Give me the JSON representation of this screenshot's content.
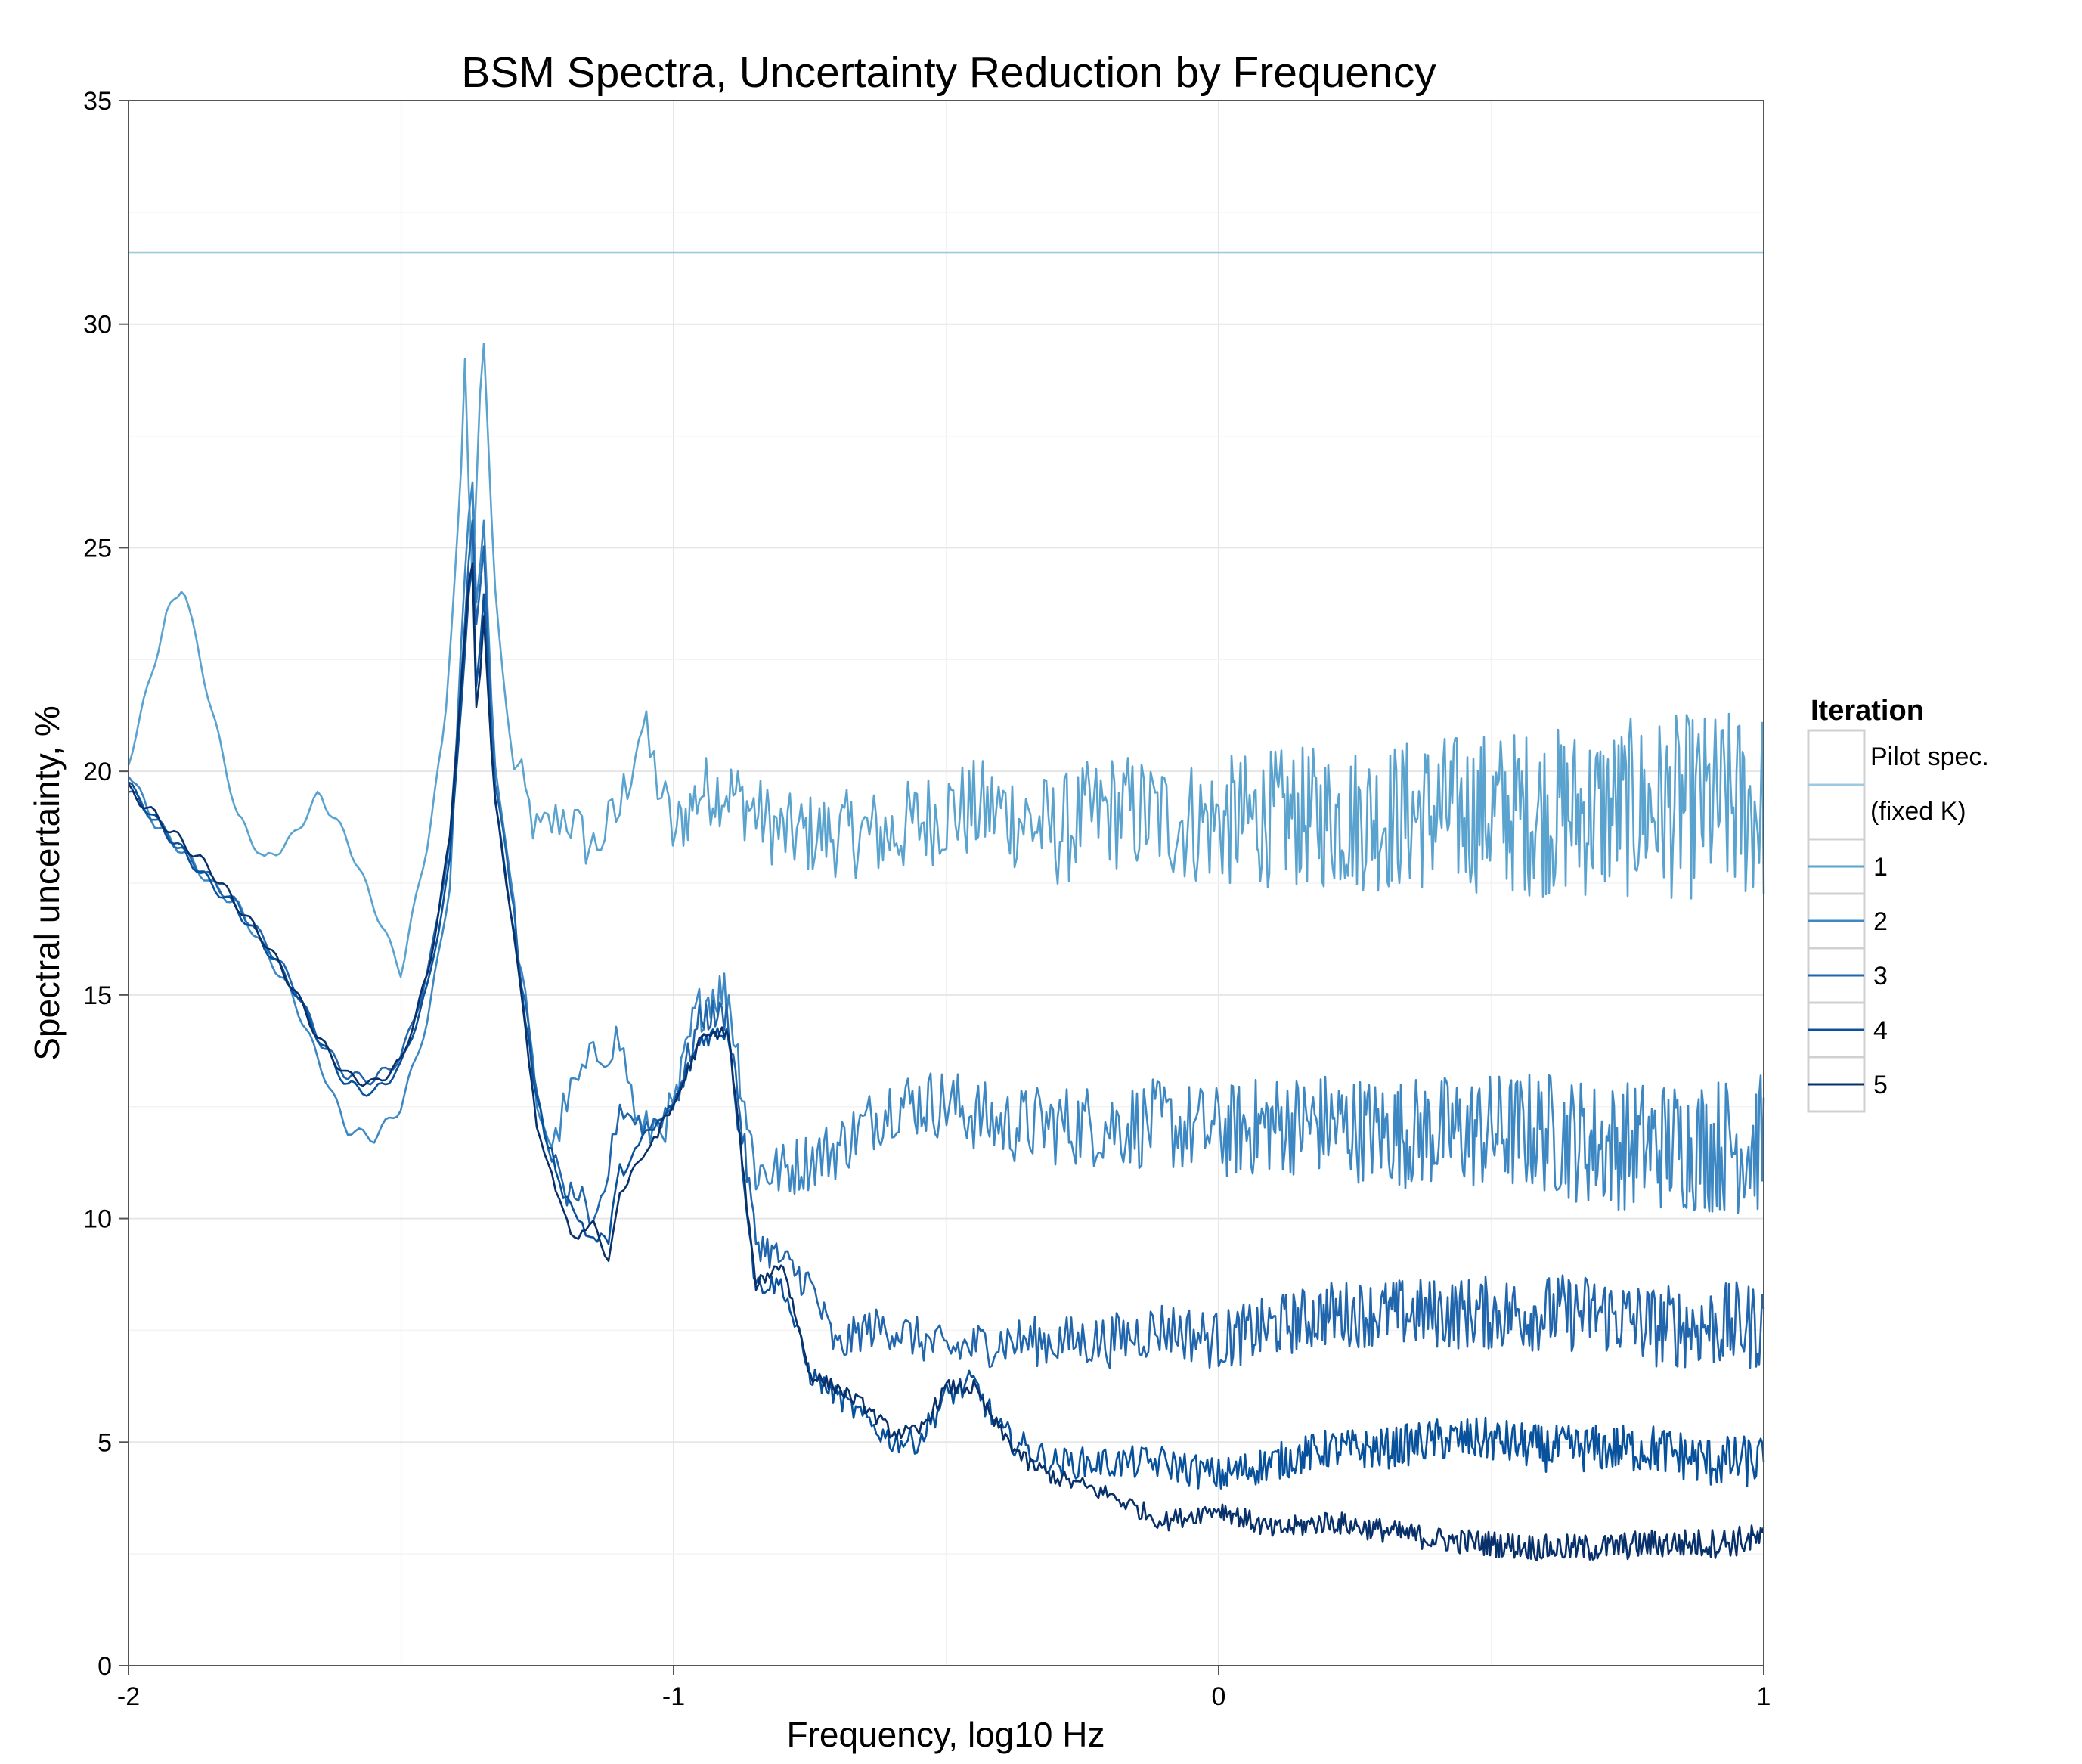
{
  "chart_data": {
    "type": "line",
    "title": "BSM Spectra, Uncertainty Reduction by Frequency",
    "xlabel": "Frequency, log10 Hz",
    "ylabel": "Spectral uncertainty, %",
    "xlim": [
      -2,
      1
    ],
    "ylim": [
      0,
      35
    ],
    "x_ticks": [
      -2,
      -1,
      0,
      1
    ],
    "y_ticks": [
      0,
      5,
      10,
      15,
      20,
      25,
      30,
      35
    ],
    "grid": true,
    "legend": {
      "title": "Iteration",
      "placement": "right",
      "entries": [
        "Pilot spec. (fixed K)",
        "1",
        "2",
        "3",
        "4",
        "5"
      ]
    },
    "series": [
      {
        "name": "Pilot spec. (fixed K)",
        "color": "#9ecae1",
        "noise": 0,
        "x": [
          -2,
          1
        ],
        "y": [
          31.6,
          31.6
        ]
      },
      {
        "name": "1",
        "color": "#5ba3cf",
        "noise": 2.2,
        "x": [
          -2,
          -1.93,
          -1.9,
          -1.85,
          -1.8,
          -1.75,
          -1.7,
          -1.65,
          -1.6,
          -1.55,
          -1.5,
          -1.45,
          -1.42,
          -1.39,
          -1.385,
          -1.37,
          -1.36,
          -1.35,
          -1.33,
          -1.3,
          -1.25,
          -1.2,
          -1.15,
          -1.1,
          -1.06,
          -1.0,
          -0.95,
          -0.9,
          -0.8,
          -0.7,
          -0.6,
          -0.5,
          -0.4,
          -0.3,
          -0.2,
          -0.1,
          0,
          0.1,
          0.2,
          0.3,
          0.4,
          0.5,
          0.6,
          0.7,
          0.8,
          0.9,
          1.0
        ],
        "y": [
          20.2,
          23.5,
          24.2,
          21.5,
          19.0,
          18.0,
          18.5,
          19.5,
          18.5,
          17.0,
          15.5,
          18.5,
          21.0,
          26.5,
          30.0,
          24.0,
          27.0,
          30.0,
          24.5,
          20.5,
          18.5,
          19.0,
          18.2,
          19.0,
          21.0,
          18.5,
          19.5,
          19.5,
          18.5,
          18.5,
          18.5,
          19.0,
          19.0,
          18.5,
          19.0,
          18.8,
          18.7,
          18.8,
          18.8,
          18.8,
          18.9,
          18.9,
          18.9,
          18.9,
          19.0,
          19.0,
          19.0
        ]
      },
      {
        "name": "2",
        "color": "#3d88c3",
        "noise": 1.6,
        "x": [
          -2,
          -1.95,
          -1.9,
          -1.85,
          -1.8,
          -1.75,
          -1.7,
          -1.65,
          -1.6,
          -1.55,
          -1.5,
          -1.45,
          -1.41,
          -1.385,
          -1.37,
          -1.36,
          -1.35,
          -1.33,
          -1.3,
          -1.25,
          -1.22,
          -1.2,
          -1.15,
          -1.1,
          -1.06,
          -1.0,
          -0.96,
          -0.93,
          -0.9,
          -0.85,
          -0.8,
          -0.7,
          -0.6,
          -0.5,
          -0.4,
          -0.3,
          -0.2,
          -0.1,
          0,
          0.1,
          0.2,
          0.3,
          0.4,
          0.5,
          0.6,
          0.7,
          0.8,
          0.9,
          1.0
        ],
        "y": [
          20.0,
          18.8,
          18.2,
          17.5,
          17.0,
          16.0,
          15.0,
          13.5,
          12.0,
          11.8,
          12.5,
          14.5,
          17.5,
          24.0,
          27.0,
          23.0,
          26.0,
          20.5,
          17.5,
          12.5,
          11.5,
          12.5,
          13.5,
          14.0,
          11.8,
          12.3,
          14.5,
          15.0,
          15.0,
          11.0,
          11.0,
          11.5,
          12.5,
          12.5,
          12.0,
          12.0,
          12.0,
          12.0,
          11.8,
          12.0,
          12.0,
          11.8,
          11.8,
          11.8,
          11.8,
          11.5,
          11.5,
          11.5,
          11.5
        ]
      },
      {
        "name": "3",
        "color": "#2166ac",
        "noise": 1.0,
        "x": [
          -2,
          -1.95,
          -1.9,
          -1.85,
          -1.8,
          -1.75,
          -1.7,
          -1.65,
          -1.6,
          -1.55,
          -1.5,
          -1.45,
          -1.41,
          -1.39,
          -1.37,
          -1.36,
          -1.35,
          -1.33,
          -1.3,
          -1.25,
          -1.2,
          -1.17,
          -1.15,
          -1.12,
          -1.1,
          -1.05,
          -1.0,
          -0.95,
          -0.9,
          -0.85,
          -0.8,
          -0.75,
          -0.7,
          -0.65,
          -0.6,
          -0.5,
          -0.4,
          -0.3,
          -0.2,
          -0.1,
          0,
          0.1,
          0.2,
          0.3,
          0.4,
          0.5,
          0.6,
          0.7,
          0.8,
          0.9,
          1.0
        ],
        "y": [
          19.6,
          18.9,
          18.2,
          17.6,
          17.0,
          16.2,
          15.3,
          14.0,
          13.2,
          13.1,
          13.6,
          15.5,
          18.5,
          22.0,
          26.0,
          22.5,
          25.5,
          20.0,
          17.5,
          12.5,
          10.5,
          10.5,
          9.5,
          11.0,
          12.5,
          12.0,
          12.5,
          14.5,
          14.5,
          9.5,
          9.0,
          8.5,
          7.0,
          7.5,
          7.5,
          7.0,
          7.2,
          7.2,
          7.2,
          7.5,
          7.2,
          7.5,
          7.8,
          7.8,
          7.8,
          7.8,
          7.8,
          7.8,
          7.5,
          7.5,
          7.5
        ]
      },
      {
        "name": "4",
        "color": "#08519c",
        "noise": 0.6,
        "x": [
          -2,
          -1.95,
          -1.9,
          -1.85,
          -1.8,
          -1.75,
          -1.7,
          -1.65,
          -1.6,
          -1.55,
          -1.5,
          -1.45,
          -1.41,
          -1.39,
          -1.37,
          -1.36,
          -1.35,
          -1.33,
          -1.3,
          -1.25,
          -1.2,
          -1.15,
          -1.12,
          -1.1,
          -1.05,
          -1.0,
          -0.95,
          -0.9,
          -0.85,
          -0.8,
          -0.75,
          -0.7,
          -0.65,
          -0.6,
          -0.55,
          -0.5,
          -0.45,
          -0.4,
          -0.35,
          -0.3,
          -0.2,
          -0.1,
          0,
          0.1,
          0.2,
          0.3,
          0.4,
          0.5,
          0.6,
          0.7,
          0.8,
          0.9,
          1.0
        ],
        "y": [
          19.7,
          18.9,
          18.2,
          17.5,
          16.9,
          16.1,
          15.2,
          14.0,
          13.0,
          12.8,
          13.4,
          15.2,
          18.0,
          21.5,
          25.0,
          21.0,
          24.5,
          19.5,
          17.0,
          12.5,
          10.5,
          9.5,
          9.5,
          11.0,
          11.8,
          12.5,
          14.0,
          14.2,
          8.5,
          8.5,
          6.5,
          6.0,
          5.5,
          5.0,
          5.0,
          6.0,
          6.3,
          5.2,
          4.8,
          4.5,
          4.5,
          4.5,
          4.2,
          4.5,
          4.8,
          4.8,
          5.0,
          5.0,
          4.8,
          4.8,
          4.8,
          4.5,
          4.5
        ]
      },
      {
        "name": "5",
        "color": "#08306b",
        "noise": 0.35,
        "x": [
          -2,
          -1.95,
          -1.9,
          -1.85,
          -1.8,
          -1.75,
          -1.7,
          -1.65,
          -1.6,
          -1.55,
          -1.5,
          -1.45,
          -1.41,
          -1.39,
          -1.37,
          -1.36,
          -1.35,
          -1.33,
          -1.3,
          -1.25,
          -1.2,
          -1.18,
          -1.15,
          -1.12,
          -1.1,
          -1.05,
          -1.0,
          -0.95,
          -0.9,
          -0.85,
          -0.8,
          -0.75,
          -0.7,
          -0.65,
          -0.6,
          -0.55,
          -0.5,
          -0.45,
          -0.4,
          -0.35,
          -0.3,
          -0.2,
          -0.1,
          0,
          0.1,
          0.2,
          0.3,
          0.4,
          0.5,
          0.6,
          0.7,
          0.8,
          0.9,
          1.0
        ],
        "y": [
          19.6,
          19.0,
          18.4,
          17.8,
          17.0,
          16.2,
          15.2,
          14.0,
          13.2,
          13.0,
          13.5,
          15.5,
          18.5,
          22.0,
          25.0,
          20.5,
          24.0,
          19.5,
          17.0,
          12.0,
          10.0,
          9.5,
          10.0,
          9.0,
          10.5,
          11.5,
          12.5,
          14.0,
          14.2,
          8.5,
          9.0,
          6.5,
          6.2,
          5.8,
          5.2,
          5.2,
          6.2,
          6.2,
          5.2,
          4.5,
          4.2,
          3.8,
          3.2,
          3.5,
          3.0,
          3.2,
          3.0,
          2.8,
          2.7,
          2.6,
          2.6,
          2.7,
          2.7,
          2.8
        ]
      }
    ]
  }
}
